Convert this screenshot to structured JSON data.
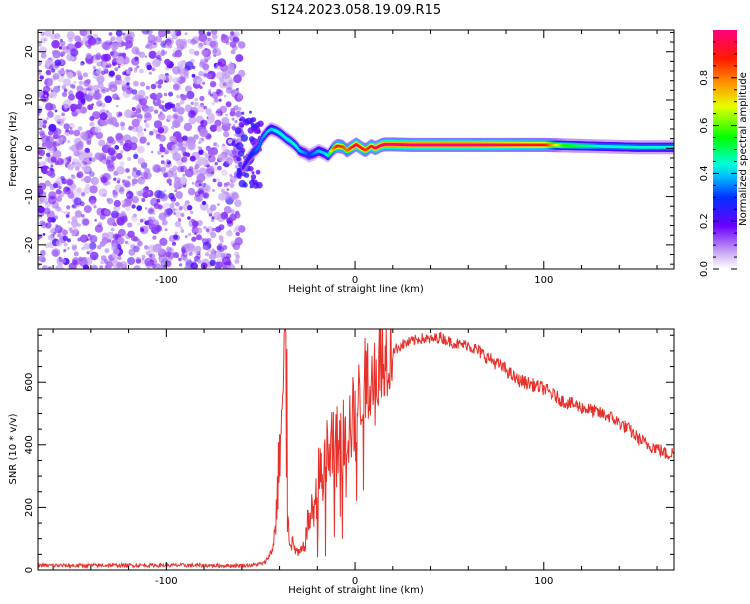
{
  "title": "S124.2023.058.19.09.R15",
  "colors": {
    "snr_line": "#e8302a",
    "background": "#ffffff",
    "axis": "#000000"
  },
  "chart_data": [
    {
      "type": "heatmap",
      "xlabel": "Height of straight line (km)",
      "ylabel": "Frequency (Hz)",
      "xlim": [
        -168,
        169
      ],
      "ylim": [
        -25,
        24.5
      ],
      "x_ticks": [
        -100,
        0,
        100
      ],
      "y_ticks": [
        -20,
        -10,
        0,
        10,
        20
      ],
      "colorbar": {
        "label": "Normalized spectral amplitude",
        "ticks": [
          0.0,
          0.2,
          0.4,
          0.6,
          0.8
        ],
        "ticks_text": [
          "0.0",
          "0.2",
          "0.4",
          "0.6",
          "0.8"
        ],
        "range": [
          0,
          1
        ]
      },
      "noise_region_x": [
        -168,
        -60
      ],
      "signal_track": {
        "x": [
          -60,
          -57,
          -55,
          -52,
          -50,
          -47,
          -45,
          -42,
          -40,
          -37,
          -35,
          -32,
          -30,
          -27,
          -25,
          -22,
          -20,
          -17,
          -15,
          -12,
          -10,
          -7,
          -5,
          -2,
          0,
          3,
          5,
          8,
          10,
          13,
          15,
          20,
          30,
          40,
          60,
          80,
          100,
          110,
          120,
          130,
          140,
          150,
          160,
          169
        ],
        "freq": [
          -4,
          -2,
          -1,
          0,
          2,
          3.5,
          4,
          3.5,
          3,
          2,
          1.5,
          0.5,
          -0.5,
          -1,
          -1.5,
          -1,
          -0.5,
          -1,
          -1.5,
          0,
          0.5,
          0.3,
          -0.5,
          0.3,
          0.8,
          0,
          -0.4,
          0.5,
          0,
          0.6,
          0.8,
          0.8,
          0.7,
          0.7,
          0.7,
          0.7,
          0.7,
          0.6,
          0.5,
          0.4,
          0.3,
          0.2,
          0.2,
          0.2
        ],
        "amplitude": [
          0.2,
          0.25,
          0.3,
          0.35,
          0.35,
          0.4,
          0.4,
          0.45,
          0.45,
          0.45,
          0.45,
          0.45,
          0.4,
          0.35,
          0.3,
          0.35,
          0.4,
          0.4,
          0.45,
          0.8,
          0.9,
          0.85,
          0.8,
          0.9,
          0.95,
          0.9,
          0.85,
          0.9,
          0.95,
          0.95,
          1.0,
          1.0,
          1.0,
          1.0,
          1.0,
          0.95,
          0.9,
          0.55,
          0.5,
          0.45,
          0.45,
          0.45,
          0.45,
          0.45
        ]
      }
    },
    {
      "type": "line",
      "xlabel": "Height of straight line (km)",
      "ylabel": "SNR (10 * v/v)",
      "xlim": [
        -168,
        169
      ],
      "ylim": [
        0,
        770
      ],
      "x_ticks": [
        -100,
        0,
        100
      ],
      "y_ticks": [
        0,
        200,
        400,
        600
      ],
      "series": [
        {
          "x": [
            -168,
            -150,
            -130,
            -110,
            -90,
            -70,
            -55,
            -48,
            -44,
            -42,
            -40,
            -38,
            -37,
            -36,
            -35,
            -33,
            -30,
            -27,
            -25,
            -22,
            -20,
            -18,
            -15,
            -12,
            -10,
            -7,
            -5,
            -2,
            0,
            3,
            5,
            8,
            10,
            13,
            15,
            20,
            25,
            30,
            35,
            40,
            45,
            50,
            55,
            60,
            65,
            70,
            75,
            80,
            85,
            90,
            95,
            100,
            105,
            110,
            115,
            120,
            125,
            130,
            135,
            140,
            145,
            150,
            155,
            160,
            165,
            169
          ],
          "y": [
            15,
            14,
            15,
            15,
            15,
            14,
            15,
            22,
            60,
            150,
            380,
            600,
            700,
            180,
            110,
            80,
            50,
            70,
            150,
            200,
            240,
            300,
            360,
            380,
            390,
            420,
            440,
            470,
            500,
            560,
            600,
            630,
            650,
            680,
            690,
            700,
            720,
            730,
            740,
            735,
            745,
            730,
            720,
            720,
            700,
            680,
            660,
            640,
            610,
            600,
            590,
            580,
            560,
            540,
            530,
            520,
            510,
            500,
            490,
            470,
            450,
            420,
            400,
            390,
            370,
            375
          ]
        }
      ]
    }
  ]
}
